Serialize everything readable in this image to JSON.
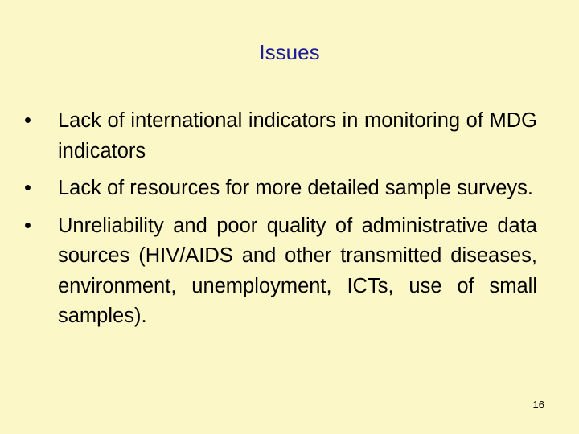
{
  "title": "Issues",
  "bullets": [
    "Lack of international indicators in monitoring of MDG indicators",
    "Lack of resources for more detailed sample surveys.",
    "Unreliability and poor quality of administrative data sources (HIV/AIDS and other transmitted diseases, environment, unemployment, ICTs, use of small samples)."
  ],
  "page_number": "16"
}
